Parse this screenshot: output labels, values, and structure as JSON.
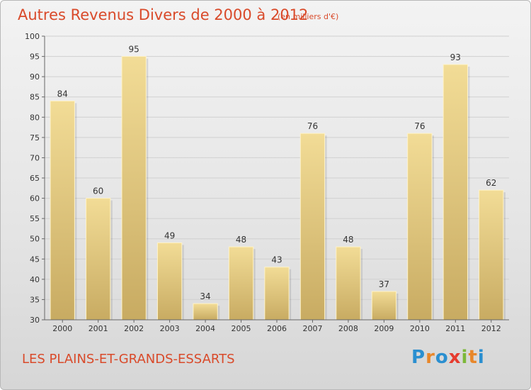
{
  "header": {
    "title": "Autres Revenus Divers de 2000 à 2012",
    "subtitle": "(en milliers d'€)"
  },
  "footer": {
    "town": "LES PLAINS-ET-GRANDS-ESSARTS",
    "logo_letters": [
      "P",
      "r",
      "o",
      "x",
      "i",
      "t",
      "i"
    ],
    "logo_colors": [
      "#2a8fd0",
      "#e8872a",
      "#2a8fd0",
      "#e63c2f",
      "#7cb83a",
      "#e8872a",
      "#2a8fd0"
    ]
  },
  "chart_data": {
    "type": "bar",
    "title": "Autres Revenus Divers de 2000 à 2012",
    "xlabel": "",
    "ylabel": "",
    "categories": [
      "2000",
      "2001",
      "2002",
      "2003",
      "2004",
      "2005",
      "2006",
      "2007",
      "2008",
      "2009",
      "2010",
      "2011",
      "2012"
    ],
    "values": [
      84,
      60,
      95,
      49,
      34,
      48,
      43,
      76,
      48,
      37,
      76,
      93,
      62
    ],
    "ylim": [
      30,
      100
    ],
    "yticks": [
      30,
      35,
      40,
      45,
      50,
      55,
      60,
      65,
      70,
      75,
      80,
      85,
      90,
      95,
      100
    ],
    "grid": true,
    "colors": {
      "bar_light": "#f2dc96",
      "bar_dark": "#c8ab62",
      "grid": "#d0d0d0"
    }
  }
}
